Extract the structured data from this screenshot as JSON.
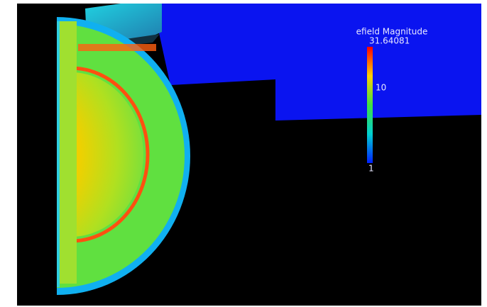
{
  "legend": {
    "title": "efield Magnitude",
    "max_label": "31.64081",
    "mid_label": "10",
    "min_label": "1"
  }
}
